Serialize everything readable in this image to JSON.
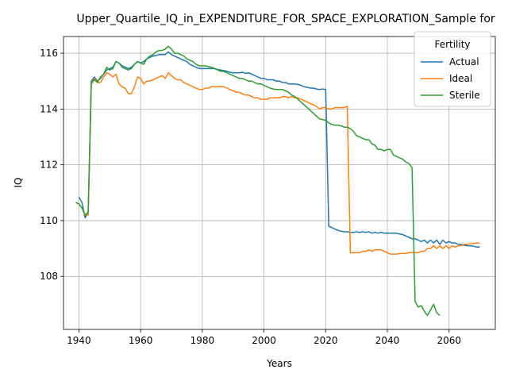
{
  "chart_data": {
    "type": "line",
    "title": "Upper_Quartile_IQ_in_EXPENDITURE_FOR_SPACE_EXPLORATION_Sample for",
    "xlabel": "Years",
    "ylabel": "IQ",
    "xlim": [
      1935,
      2075
    ],
    "ylim": [
      106.1,
      116.6
    ],
    "xticks": [
      1940,
      1960,
      1980,
      2000,
      2020,
      2040,
      2060
    ],
    "yticks": [
      108,
      110,
      112,
      114,
      116
    ],
    "grid": true,
    "legend": {
      "title": "Fertility",
      "placement": "top-right"
    },
    "series": [
      {
        "name": "Actual",
        "color": "#1f77b4",
        "x": [
          1940,
          1941,
          1942,
          1943,
          1944,
          1945,
          1946,
          1947,
          1948,
          1949,
          1950,
          1951,
          1952,
          1953,
          1954,
          1955,
          1956,
          1957,
          1958,
          1959,
          1960,
          1961,
          1962,
          1963,
          1964,
          1965,
          1966,
          1967,
          1968,
          1969,
          1970,
          1971,
          1972,
          1973,
          1974,
          1975,
          1976,
          1977,
          1978,
          1979,
          1980,
          1981,
          1982,
          1983,
          1984,
          1985,
          1986,
          1987,
          1988,
          1989,
          1990,
          1991,
          1992,
          1993,
          1994,
          1995,
          1996,
          1997,
          1998,
          1999,
          2000,
          2001,
          2002,
          2003,
          2004,
          2005,
          2006,
          2007,
          2008,
          2009,
          2010,
          2011,
          2012,
          2013,
          2014,
          2015,
          2016,
          2017,
          2018,
          2019,
          2020,
          2021,
          2022,
          2023,
          2024,
          2025,
          2026,
          2027,
          2028,
          2029,
          2030,
          2031,
          2032,
          2033,
          2034,
          2035,
          2036,
          2037,
          2038,
          2039,
          2040,
          2041,
          2042,
          2043,
          2044,
          2045,
          2046,
          2047,
          2048,
          2049,
          2050,
          2051,
          2052,
          2053,
          2054,
          2055,
          2056,
          2057,
          2058,
          2059,
          2060,
          2061,
          2062,
          2063,
          2064,
          2065,
          2066,
          2067,
          2068,
          2069,
          2070
        ],
        "values": [
          110.85,
          110.65,
          110.1,
          110.3,
          115.0,
          115.15,
          115.0,
          115.1,
          115.25,
          115.4,
          115.45,
          115.5,
          115.7,
          115.65,
          115.55,
          115.5,
          115.45,
          115.5,
          115.6,
          115.7,
          115.65,
          115.7,
          115.8,
          115.85,
          115.9,
          115.92,
          115.95,
          115.95,
          115.95,
          116.05,
          115.95,
          115.9,
          115.85,
          115.8,
          115.75,
          115.7,
          115.6,
          115.55,
          115.5,
          115.45,
          115.45,
          115.45,
          115.45,
          115.45,
          115.45,
          115.42,
          115.4,
          115.38,
          115.35,
          115.32,
          115.3,
          115.3,
          115.3,
          115.32,
          115.28,
          115.3,
          115.25,
          115.2,
          115.15,
          115.1,
          115.1,
          115.05,
          115.05,
          115.05,
          115.0,
          115.0,
          114.95,
          114.95,
          114.9,
          114.9,
          114.9,
          114.88,
          114.85,
          114.8,
          114.78,
          114.75,
          114.75,
          114.72,
          114.7,
          114.72,
          114.7,
          109.8,
          109.75,
          109.7,
          109.65,
          109.62,
          109.6,
          109.6,
          109.58,
          109.58,
          109.6,
          109.58,
          109.6,
          109.58,
          109.6,
          109.55,
          109.58,
          109.55,
          109.58,
          109.55,
          109.55,
          109.55,
          109.55,
          109.55,
          109.52,
          109.5,
          109.45,
          109.4,
          109.35,
          109.35,
          109.3,
          109.25,
          109.3,
          109.2,
          109.3,
          109.2,
          109.3,
          109.15,
          109.3,
          109.2,
          109.25,
          109.2,
          109.2,
          109.15,
          109.15,
          109.12,
          109.1,
          109.1,
          109.08,
          109.05,
          109.05
        ]
      },
      {
        "name": "Ideal",
        "color": "#ff7f0e",
        "x": [
          1939,
          1940,
          1941,
          1942,
          1943,
          1944,
          1945,
          1946,
          1947,
          1948,
          1949,
          1950,
          1951,
          1952,
          1953,
          1954,
          1955,
          1956,
          1957,
          1958,
          1959,
          1960,
          1961,
          1962,
          1963,
          1964,
          1965,
          1966,
          1967,
          1968,
          1969,
          1970,
          1971,
          1972,
          1973,
          1974,
          1975,
          1976,
          1977,
          1978,
          1979,
          1980,
          1981,
          1982,
          1983,
          1984,
          1985,
          1986,
          1987,
          1988,
          1989,
          1990,
          1991,
          1992,
          1993,
          1994,
          1995,
          1996,
          1997,
          1998,
          1999,
          2000,
          2001,
          2002,
          2003,
          2004,
          2005,
          2006,
          2007,
          2008,
          2009,
          2010,
          2011,
          2012,
          2013,
          2014,
          2015,
          2016,
          2017,
          2018,
          2019,
          2020,
          2021,
          2022,
          2023,
          2024,
          2025,
          2026,
          2027,
          2028,
          2029,
          2030,
          2031,
          2032,
          2033,
          2034,
          2035,
          2036,
          2037,
          2038,
          2039,
          2040,
          2041,
          2042,
          2043,
          2044,
          2045,
          2046,
          2047,
          2048,
          2049,
          2050,
          2051,
          2052,
          2053,
          2054,
          2055,
          2056,
          2057,
          2058,
          2059,
          2060,
          2061,
          2062,
          2063,
          2064,
          2065,
          2066,
          2067,
          2068,
          2069,
          2070
        ],
        "values": [
          110.65,
          110.6,
          110.45,
          110.2,
          110.2,
          114.9,
          115.1,
          114.95,
          114.95,
          115.15,
          115.3,
          115.25,
          115.15,
          115.25,
          114.9,
          114.8,
          114.75,
          114.55,
          114.55,
          114.8,
          115.15,
          115.1,
          114.9,
          115.0,
          115.0,
          115.05,
          115.1,
          115.15,
          115.2,
          115.1,
          115.3,
          115.2,
          115.1,
          115.05,
          115.05,
          114.95,
          114.9,
          114.85,
          114.8,
          114.75,
          114.7,
          114.7,
          114.75,
          114.75,
          114.8,
          114.8,
          114.8,
          114.8,
          114.8,
          114.75,
          114.7,
          114.65,
          114.6,
          114.6,
          114.55,
          114.5,
          114.5,
          114.45,
          114.4,
          114.4,
          114.35,
          114.35,
          114.35,
          114.4,
          114.4,
          114.4,
          114.4,
          114.45,
          114.45,
          114.4,
          114.45,
          114.4,
          114.4,
          114.35,
          114.3,
          114.25,
          114.2,
          114.15,
          114.1,
          114.0,
          114.05,
          114.05,
          114.0,
          114.0,
          114.05,
          114.05,
          114.05,
          114.05,
          114.1,
          108.85,
          108.85,
          108.85,
          108.85,
          108.9,
          108.9,
          108.95,
          108.9,
          108.95,
          108.95,
          108.95,
          108.9,
          108.85,
          108.8,
          108.8,
          108.8,
          108.82,
          108.82,
          108.82,
          108.85,
          108.85,
          108.85,
          108.85,
          108.9,
          108.9,
          109.0,
          109.0,
          109.1,
          109.0,
          109.1,
          109.0,
          109.1,
          109.0,
          109.1,
          109.05,
          109.1,
          109.1,
          109.15,
          109.15,
          109.18,
          109.18,
          109.2,
          109.2
        ]
      },
      {
        "name": "Sterile",
        "color": "#2ca02c",
        "x": [
          1939,
          1940,
          1941,
          1942,
          1943,
          1944,
          1945,
          1946,
          1947,
          1948,
          1949,
          1950,
          1951,
          1952,
          1953,
          1954,
          1955,
          1956,
          1957,
          1958,
          1959,
          1960,
          1961,
          1962,
          1963,
          1964,
          1965,
          1966,
          1967,
          1968,
          1969,
          1970,
          1971,
          1972,
          1973,
          1974,
          1975,
          1976,
          1977,
          1978,
          1979,
          1980,
          1981,
          1982,
          1983,
          1984,
          1985,
          1986,
          1987,
          1988,
          1989,
          1990,
          1991,
          1992,
          1993,
          1994,
          1995,
          1996,
          1997,
          1998,
          1999,
          2000,
          2001,
          2002,
          2003,
          2004,
          2005,
          2006,
          2007,
          2008,
          2009,
          2010,
          2011,
          2012,
          2013,
          2014,
          2015,
          2016,
          2017,
          2018,
          2019,
          2020,
          2021,
          2022,
          2023,
          2024,
          2025,
          2026,
          2027,
          2028,
          2029,
          2030,
          2031,
          2032,
          2033,
          2034,
          2035,
          2036,
          2037,
          2038,
          2039,
          2040,
          2041,
          2042,
          2043,
          2044,
          2045,
          2046,
          2047,
          2048,
          2049,
          2050,
          2051,
          2052,
          2053,
          2054,
          2055,
          2056,
          2057
        ],
        "values": [
          110.65,
          110.6,
          110.45,
          110.2,
          110.3,
          114.9,
          115.05,
          114.95,
          115.15,
          115.25,
          115.5,
          115.4,
          115.45,
          115.7,
          115.65,
          115.5,
          115.45,
          115.4,
          115.45,
          115.6,
          115.7,
          115.65,
          115.6,
          115.8,
          115.9,
          115.95,
          116.05,
          116.1,
          116.1,
          116.15,
          116.25,
          116.15,
          116.0,
          116.0,
          115.95,
          115.9,
          115.8,
          115.75,
          115.7,
          115.6,
          115.55,
          115.55,
          115.55,
          115.52,
          115.5,
          115.45,
          115.4,
          115.35,
          115.35,
          115.3,
          115.25,
          115.2,
          115.15,
          115.1,
          115.1,
          115.05,
          115.0,
          115.0,
          114.95,
          114.9,
          114.9,
          114.85,
          114.8,
          114.75,
          114.72,
          114.7,
          114.7,
          114.7,
          114.65,
          114.6,
          114.5,
          114.45,
          114.35,
          114.25,
          114.15,
          114.05,
          113.95,
          113.85,
          113.75,
          113.65,
          113.62,
          113.6,
          113.5,
          113.45,
          113.42,
          113.42,
          113.4,
          113.35,
          113.35,
          113.3,
          113.2,
          113.05,
          113.0,
          112.95,
          112.9,
          112.9,
          112.75,
          112.7,
          112.55,
          112.55,
          112.5,
          112.55,
          112.55,
          112.35,
          112.3,
          112.25,
          112.2,
          112.1,
          112.05,
          111.9,
          107.1,
          106.9,
          106.95,
          106.75,
          106.6,
          106.8,
          107.0,
          106.7,
          106.6
        ]
      }
    ]
  }
}
